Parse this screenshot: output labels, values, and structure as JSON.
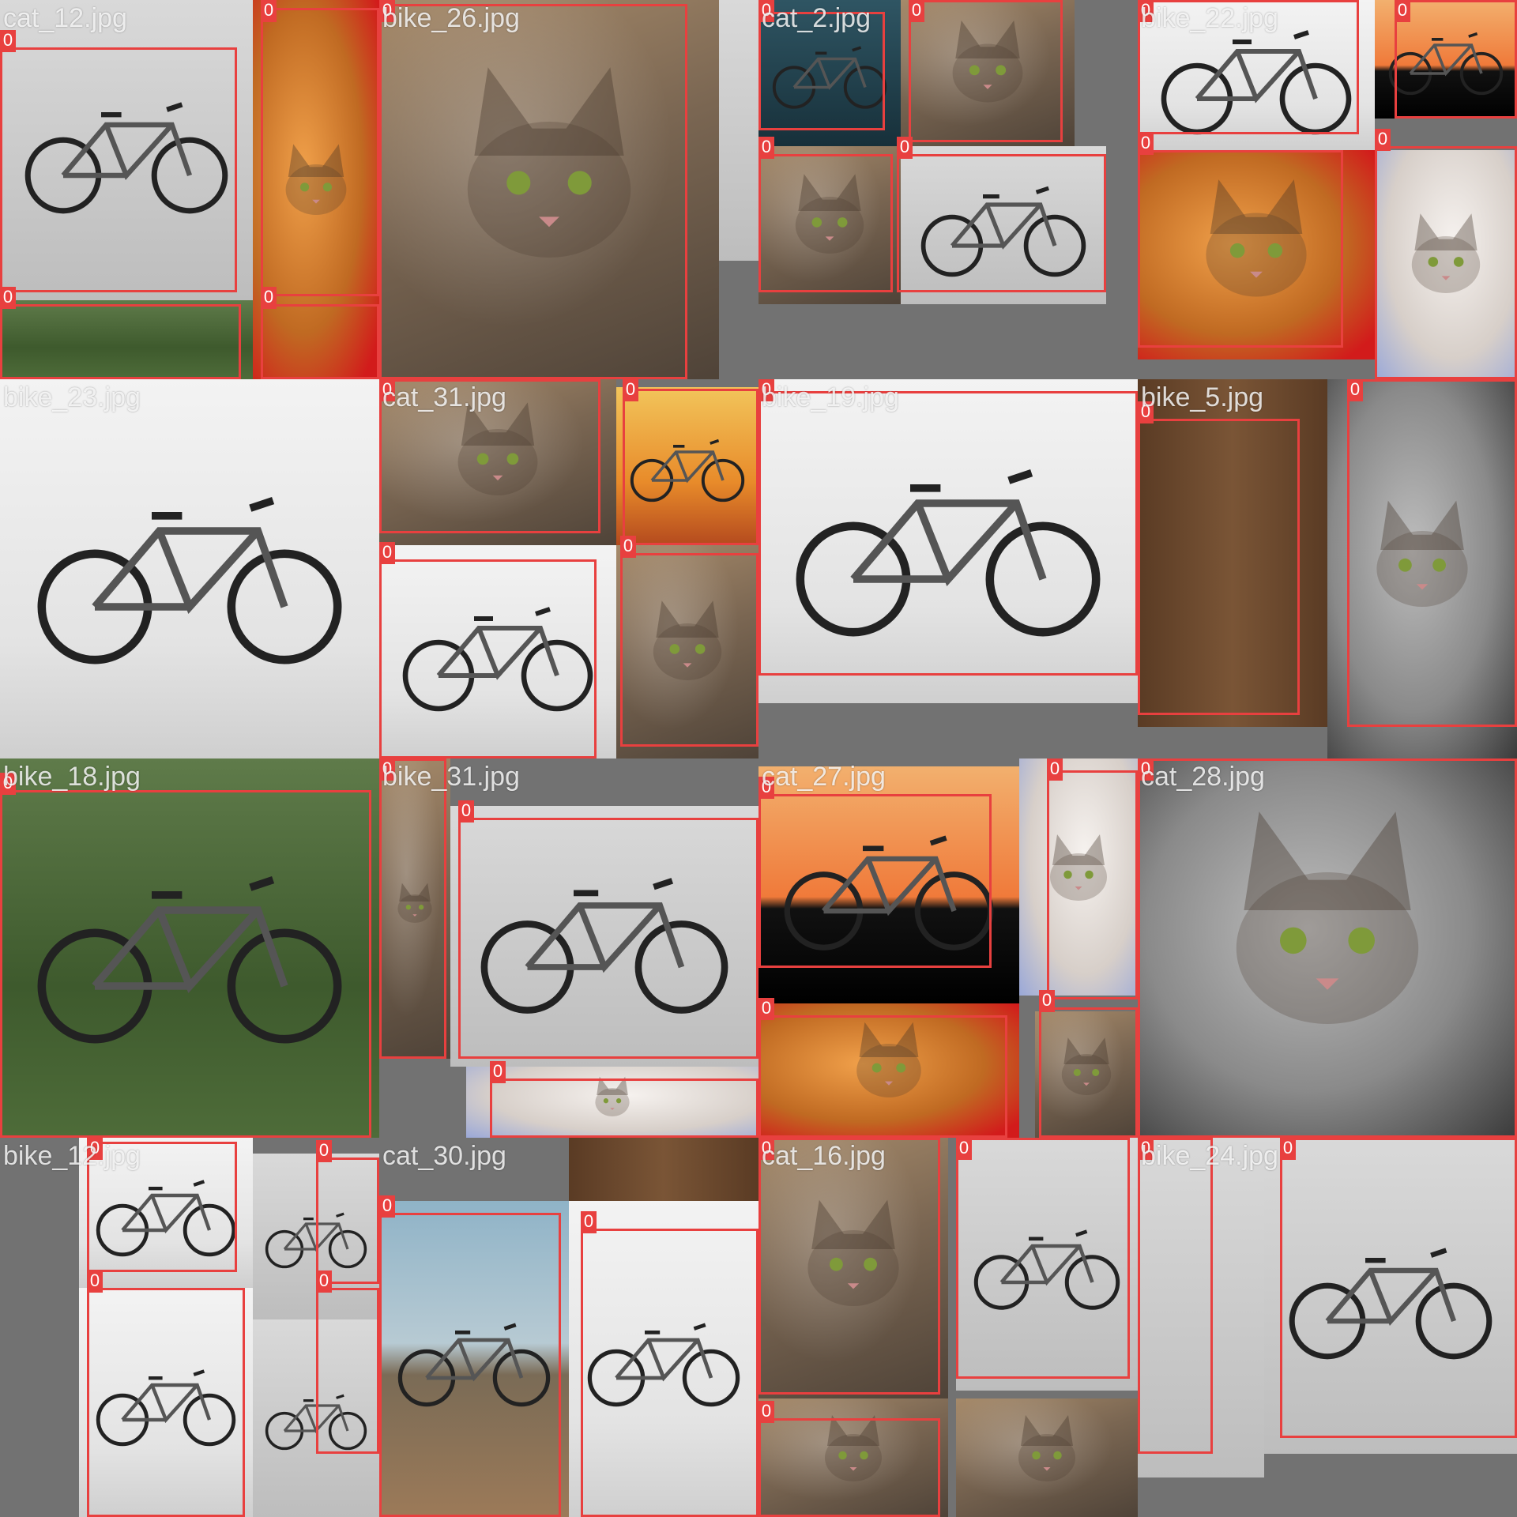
{
  "mosaic": {
    "tiles": [
      {
        "filename": "cat_12.jpg",
        "subject": "bike"
      },
      {
        "filename": "bike_26.jpg",
        "subject": "cat"
      },
      {
        "filename": "cat_2.jpg",
        "subject": "bike"
      },
      {
        "filename": "bike_22.jpg",
        "subject": "bike"
      },
      {
        "filename": "bike_23.jpg",
        "subject": "bike"
      },
      {
        "filename": "cat_31.jpg",
        "subject": "cat"
      },
      {
        "filename": "bike_19.jpg",
        "subject": "bike"
      },
      {
        "filename": "bike_5.jpg",
        "subject": "cat"
      },
      {
        "filename": "bike_18.jpg",
        "subject": "bike"
      },
      {
        "filename": "bike_31.jpg",
        "subject": "bike"
      },
      {
        "filename": "cat_27.jpg",
        "subject": "bike"
      },
      {
        "filename": "cat_28.jpg",
        "subject": "cat"
      },
      {
        "filename": "bike_12.jpg",
        "subject": "bike"
      },
      {
        "filename": "cat_30.jpg",
        "subject": "bike"
      },
      {
        "filename": "cat_16.jpg",
        "subject": "cat"
      },
      {
        "filename": "bike_24.jpg",
        "subject": "bike"
      }
    ],
    "box_class_label": "0",
    "box_color": "#e8403f",
    "label_color": "#ffffff",
    "background_color": "#727272"
  }
}
